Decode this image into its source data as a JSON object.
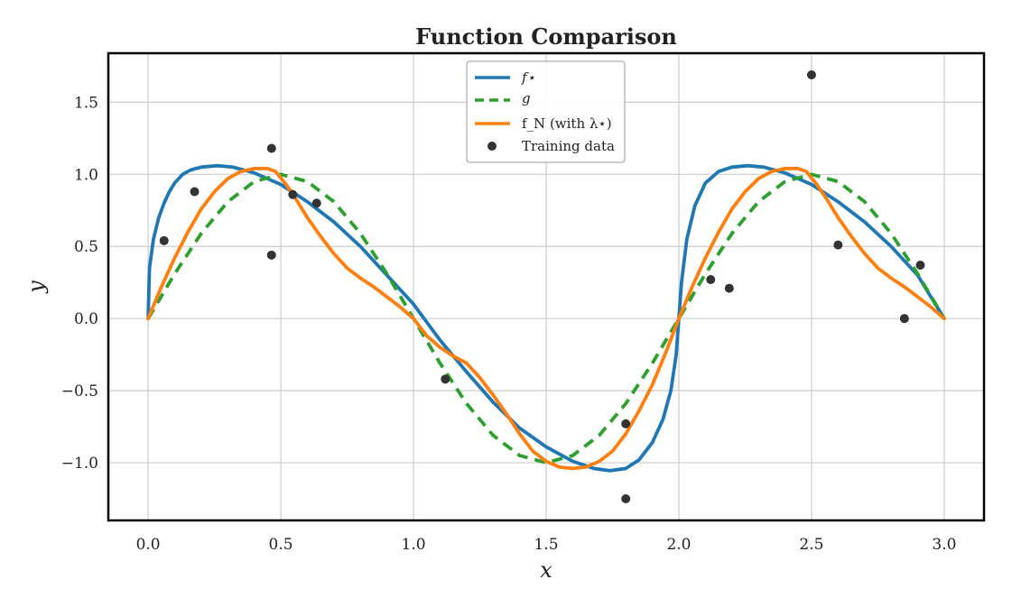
{
  "chart_data": {
    "type": "line",
    "title": "Function Comparison",
    "xlabel": "x",
    "ylabel": "y",
    "xlim": [
      -0.15,
      3.15
    ],
    "ylim": [
      -1.4,
      1.84
    ],
    "grid": true,
    "legend_position": "top-center",
    "x_ticks": [
      0.0,
      0.5,
      1.0,
      1.5,
      2.0,
      2.5,
      3.0
    ],
    "x_tick_labels": [
      "0.0",
      "0.5",
      "1.0",
      "1.5",
      "2.0",
      "2.5",
      "3.0"
    ],
    "y_ticks": [
      -1.0,
      -0.5,
      0.0,
      0.5,
      1.0,
      1.5
    ],
    "y_tick_labels": [
      "−1.0",
      "−0.5",
      "0.0",
      "0.5",
      "1.0",
      "1.5"
    ],
    "colors": {
      "f_star": "#1f77b4",
      "g": "#2ca02c",
      "f_N": "#ff7f0e",
      "data": "#333333"
    },
    "series": [
      {
        "name": "f_star",
        "legend_label": "f⋆",
        "style": "solid",
        "x": [
          0.0,
          0.005,
          0.02,
          0.04,
          0.06,
          0.08,
          0.1,
          0.13,
          0.16,
          0.2,
          0.26,
          0.32,
          0.4,
          0.5,
          0.6,
          0.7,
          0.8,
          0.9,
          1.0,
          1.1,
          1.2,
          1.3,
          1.4,
          1.5,
          1.6,
          1.68,
          1.74,
          1.8,
          1.85,
          1.9,
          1.94,
          1.97,
          1.99,
          2.0,
          2.01,
          2.03,
          2.06,
          2.1,
          2.15,
          2.2,
          2.26,
          2.32,
          2.4,
          2.5,
          2.6,
          2.7,
          2.8,
          2.9,
          3.0
        ],
        "y": [
          0.0,
          0.35,
          0.55,
          0.7,
          0.8,
          0.88,
          0.94,
          1.0,
          1.03,
          1.05,
          1.06,
          1.05,
          1.01,
          0.93,
          0.81,
          0.67,
          0.5,
          0.3,
          0.1,
          -0.15,
          -0.37,
          -0.58,
          -0.76,
          -0.89,
          -0.99,
          -1.04,
          -1.055,
          -1.04,
          -0.98,
          -0.86,
          -0.7,
          -0.5,
          -0.25,
          0.0,
          0.25,
          0.55,
          0.78,
          0.94,
          1.02,
          1.05,
          1.06,
          1.05,
          1.01,
          0.93,
          0.81,
          0.67,
          0.5,
          0.3,
          0.0
        ]
      },
      {
        "name": "g",
        "legend_label": "g",
        "style": "dashed",
        "x": [
          0.0,
          0.1,
          0.2,
          0.3,
          0.4,
          0.5,
          0.6,
          0.7,
          0.8,
          0.9,
          1.0,
          1.1,
          1.2,
          1.3,
          1.4,
          1.5,
          1.6,
          1.7,
          1.8,
          1.9,
          2.0,
          2.1,
          2.2,
          2.3,
          2.4,
          2.5,
          2.6,
          2.7,
          2.8,
          2.9,
          3.0
        ],
        "y": [
          0.0,
          0.31,
          0.59,
          0.81,
          0.95,
          1.0,
          0.95,
          0.81,
          0.59,
          0.31,
          0.0,
          -0.31,
          -0.59,
          -0.81,
          -0.95,
          -1.0,
          -0.95,
          -0.81,
          -0.59,
          -0.31,
          0.0,
          0.31,
          0.59,
          0.81,
          0.95,
          1.0,
          0.95,
          0.81,
          0.59,
          0.31,
          0.0
        ]
      },
      {
        "name": "f_N",
        "legend_label": "f_N (with λ⋆)",
        "style": "solid",
        "x": [
          0.0,
          0.05,
          0.1,
          0.15,
          0.2,
          0.25,
          0.3,
          0.35,
          0.4,
          0.45,
          0.48,
          0.52,
          0.56,
          0.6,
          0.65,
          0.7,
          0.75,
          0.8,
          0.85,
          0.9,
          0.95,
          1.0,
          1.05,
          1.1,
          1.15,
          1.2,
          1.25,
          1.3,
          1.35,
          1.4,
          1.45,
          1.5,
          1.55,
          1.6,
          1.65,
          1.7,
          1.75,
          1.8,
          1.85,
          1.9,
          1.95,
          2.0,
          2.05,
          2.1,
          2.15,
          2.2,
          2.25,
          2.3,
          2.35,
          2.4,
          2.45,
          2.48,
          2.52,
          2.56,
          2.6,
          2.65,
          2.7,
          2.75,
          2.8,
          2.85,
          2.9,
          2.95,
          3.0
        ],
        "y": [
          0.0,
          0.22,
          0.42,
          0.6,
          0.76,
          0.88,
          0.97,
          1.02,
          1.04,
          1.04,
          1.02,
          0.93,
          0.82,
          0.7,
          0.57,
          0.45,
          0.35,
          0.28,
          0.22,
          0.15,
          0.08,
          0.0,
          -0.12,
          -0.2,
          -0.26,
          -0.31,
          -0.41,
          -0.53,
          -0.66,
          -0.8,
          -0.92,
          -0.99,
          -1.03,
          -1.04,
          -1.03,
          -0.99,
          -0.92,
          -0.8,
          -0.64,
          -0.46,
          -0.24,
          0.0,
          0.22,
          0.42,
          0.6,
          0.76,
          0.88,
          0.97,
          1.02,
          1.04,
          1.04,
          1.02,
          0.93,
          0.82,
          0.7,
          0.57,
          0.45,
          0.35,
          0.28,
          0.22,
          0.15,
          0.08,
          0.0
        ]
      }
    ],
    "training_data": {
      "legend_label": "Training data",
      "x": [
        0.06,
        0.175,
        0.465,
        0.465,
        0.545,
        0.635,
        1.12,
        1.8,
        1.8,
        2.12,
        2.19,
        2.5,
        2.6,
        2.85,
        2.91
      ],
      "y": [
        0.54,
        0.88,
        1.18,
        0.44,
        0.86,
        0.8,
        -0.42,
        -0.73,
        -1.25,
        0.27,
        0.21,
        1.69,
        0.51,
        0.0,
        0.37
      ]
    }
  }
}
